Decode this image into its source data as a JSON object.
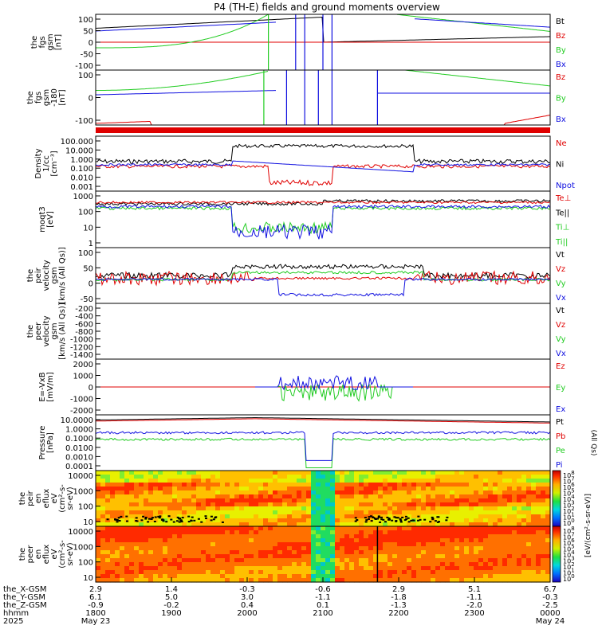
{
  "title": "P4 (TH-E) fields and ground moments overview",
  "colors": {
    "black": "#000000",
    "red": "#e00000",
    "green": "#22cc22",
    "blue": "#1010e0"
  },
  "chart_data": [
    {
      "id": "fgs",
      "type": "line",
      "ylabel_lines": [
        "the",
        "fgs",
        "gsm",
        "[nT]"
      ],
      "ytick_labels": [
        "100",
        "50",
        "0",
        "-50",
        "-100"
      ],
      "ylim": [
        -100,
        100
      ],
      "legend": [
        {
          "label": "Bt",
          "color": "#000000"
        },
        {
          "label": "Bz",
          "color": "#e00000"
        },
        {
          "label": "By",
          "color": "#22cc22"
        },
        {
          "label": "Bx",
          "color": "#1010e0"
        }
      ]
    },
    {
      "id": "fgs_zoom",
      "type": "line",
      "ylabel_lines": [
        "the",
        "fgs",
        "gsm",
        "-180",
        "[nT]"
      ],
      "ytick_labels": [
        "100",
        "0",
        "-100"
      ],
      "ylim": [
        -140,
        140
      ],
      "legend": [
        {
          "label": "Bz",
          "color": "#e00000"
        },
        {
          "label": "By",
          "color": "#22cc22"
        },
        {
          "label": "Bx",
          "color": "#1010e0"
        }
      ]
    },
    {
      "id": "density",
      "type": "line",
      "log": true,
      "ylabel_lines": [
        "Density",
        "1/cc",
        "[cm^-3]"
      ],
      "ytick_labels": [
        "100.000",
        "10.000",
        "1.000",
        "0.100",
        "0.010",
        "0.001"
      ],
      "legend": [
        {
          "label": "Ne",
          "color": "#e00000"
        },
        {
          "label": "Ni",
          "color": "#000000"
        },
        {
          "label": "Npot",
          "color": "#1010e0"
        }
      ]
    },
    {
      "id": "temperature",
      "type": "line",
      "log": true,
      "ylabel_lines": [
        "moqt3",
        "[eV]"
      ],
      "ytick_labels": [
        "1000",
        "100",
        "10",
        "1"
      ],
      "legend": [
        {
          "label": "Te⊥",
          "color": "#e00000"
        },
        {
          "label": "Te||",
          "color": "#000000"
        },
        {
          "label": "Ti⊥",
          "color": "#22cc22"
        },
        {
          "label": "Ti||",
          "color": "#22cc22"
        }
      ]
    },
    {
      "id": "peir_velocity",
      "type": "line",
      "ylabel_lines": [
        "the",
        "peir",
        "velocity",
        "gsm",
        "[km/s (All Qs)]"
      ],
      "ytick_labels": [
        "100",
        "50",
        "0",
        "-50"
      ],
      "ylim": [
        -75,
        110
      ],
      "legend": [
        {
          "label": "Vt",
          "color": "#000000"
        },
        {
          "label": "Vz",
          "color": "#e00000"
        },
        {
          "label": "Vy",
          "color": "#22cc22"
        },
        {
          "label": "Vx",
          "color": "#1010e0"
        }
      ]
    },
    {
      "id": "peer_velocity",
      "type": "line",
      "ylabel_lines": [
        "the",
        "peer",
        "velocity",
        "gsm",
        "[km/s (All Qs)]"
      ],
      "ytick_labels": [
        "-200",
        "-400",
        "-600",
        "-800",
        "-1000",
        "-1200",
        "-1400"
      ],
      "legend": [
        {
          "label": "Vt",
          "color": "#000000"
        },
        {
          "label": "Vz",
          "color": "#e00000"
        },
        {
          "label": "Vy",
          "color": "#22cc22"
        },
        {
          "label": "Vx",
          "color": "#1010e0"
        }
      ]
    },
    {
      "id": "efield",
      "type": "line",
      "ylabel_lines": [
        "E=-VxB",
        "[mV/m]"
      ],
      "ytick_labels": [
        "2000",
        "1000",
        "0",
        "-1000",
        "-2000"
      ],
      "ylim": [
        -2000,
        2000
      ],
      "legend": [
        {
          "label": "Ez",
          "color": "#e00000"
        },
        {
          "label": "Ey",
          "color": "#22cc22"
        },
        {
          "label": "Ex",
          "color": "#1010e0"
        }
      ]
    },
    {
      "id": "pressure",
      "type": "line",
      "log": true,
      "ylabel_lines": [
        "Pressure",
        "[nPa]"
      ],
      "ytick_labels": [
        "10.0000",
        "1.0000",
        "0.1000",
        "0.0100",
        "0.0010",
        "0.0001"
      ],
      "legend": [
        {
          "label": "Pt",
          "color": "#000000"
        },
        {
          "label": "Pb",
          "color": "#e00000"
        },
        {
          "label": "Pe",
          "color": "#22cc22"
        },
        {
          "label": "Pi",
          "color": "#1010e0"
        }
      ],
      "side_label": "(All Qs)"
    },
    {
      "id": "peir_spec",
      "type": "heatmap",
      "ylabel_lines": [
        "the",
        "peir",
        "en",
        "eflux",
        "eV",
        "(cm^2-s-",
        "sr-eV)"
      ],
      "ytick_labels": [
        "10000",
        "1000",
        "100",
        "10"
      ]
    },
    {
      "id": "peer_spec",
      "type": "heatmap",
      "ylabel_lines": [
        "the",
        "peer",
        "en",
        "eflux",
        "eV",
        "(cm^2-s-",
        "sr-eV)"
      ],
      "ytick_labels": [
        "10000",
        "1000",
        "100",
        "10"
      ]
    }
  ],
  "colorbar": {
    "ticks": [
      "10^8",
      "10^7",
      "10^6",
      "10^5",
      "10^4",
      "10^3",
      "10^2",
      "10^1",
      "10^0"
    ],
    "label": "[eV/(cm^2-s-sr-eV)]"
  },
  "colorbar2": {
    "ticks": [
      "10^8",
      "10^7",
      "10^6",
      "10^5",
      "10^4",
      "10^3",
      "10^2",
      "10^1",
      "10^0"
    ]
  },
  "side_labels": [
    "[eV/(cm^2-s-sr-eV)]",
    "(All Qs)"
  ],
  "xaxis": {
    "row_labels": [
      "the_X-GSM",
      "the_Y-GSM",
      "the_Z-GSM",
      "hhmm",
      "2025"
    ],
    "ticks": [
      {
        "x": "2.9",
        "y": "6.1",
        "z": "-0.9",
        "t": "1800",
        "d": "May 23"
      },
      {
        "x": "1.4",
        "y": "5.0",
        "z": "-0.2",
        "t": "1900",
        "d": ""
      },
      {
        "x": "-0.3",
        "y": "3.0",
        "z": "0.4",
        "t": "2000",
        "d": ""
      },
      {
        "x": "-0.6",
        "y": "-1.1",
        "z": "0.1",
        "t": "2100",
        "d": ""
      },
      {
        "x": "2.9",
        "y": "-1.8",
        "z": "-1.3",
        "t": "2200",
        "d": ""
      },
      {
        "x": "5.1",
        "y": "-1.1",
        "z": "-2.0",
        "t": "2300",
        "d": ""
      },
      {
        "x": "6.7",
        "y": "-0.3",
        "z": "-2.5",
        "t": "0000",
        "d": "May 24"
      }
    ]
  }
}
